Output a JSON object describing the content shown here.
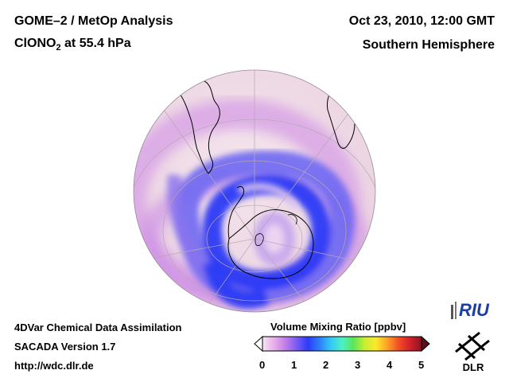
{
  "header": {
    "title_line1": "GOME–2 / MetOp Analysis",
    "species_main": "ClONO",
    "species_sub": "2",
    "species_rest": " at 55.4 hPa",
    "date": "Oct 23, 2010, 12:00 GMT",
    "hemisphere": "Southern Hemisphere"
  },
  "footer": {
    "line1": "4DVar Chemical Data Assimilation",
    "line2": "SACADA Version 1.7",
    "line3": "http://wdc.dlr.de"
  },
  "colorbar": {
    "title": "Volume Mixing Ratio [ppbv]",
    "ticks": [
      "0",
      "1",
      "2",
      "3",
      "4",
      "5"
    ],
    "colors": [
      "#f4e6f4",
      "#e9b0e8",
      "#c27ee8",
      "#7a5cf2",
      "#2b3cfa",
      "#2d7dfa",
      "#33c8f5",
      "#4ef0c8",
      "#5ae65a",
      "#c8ee32",
      "#fce82c",
      "#fca028",
      "#f24c26",
      "#d2202c",
      "#8c1420"
    ]
  },
  "logos": {
    "riu": "RIU",
    "dlr": "DLR"
  }
}
